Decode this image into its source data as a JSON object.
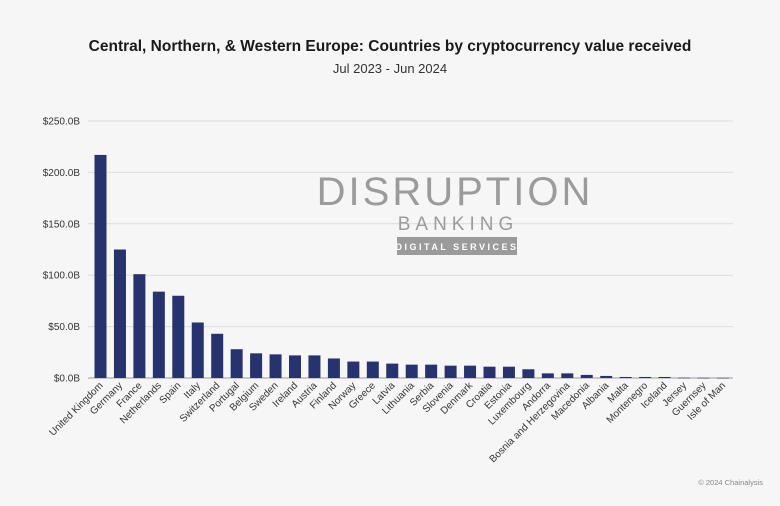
{
  "chart_data": {
    "type": "bar",
    "title": "Central, Northern, & Western Europe: Countries by cryptocurrency value received",
    "subtitle": "Jul 2023 - Jun 2024",
    "xlabel": "",
    "ylabel": "",
    "ylim": [
      0,
      250
    ],
    "yticks": [
      0,
      50,
      100,
      150,
      200,
      250
    ],
    "ytick_labels": [
      "$0.0B",
      "$50.0B",
      "$100.0B",
      "$150.0B",
      "$200.0B",
      "$250.0B"
    ],
    "grid": true,
    "categories": [
      "United Kingdom",
      "Germany",
      "France",
      "Netherlands",
      "Spain",
      "Italy",
      "Switzerland",
      "Portugal",
      "Belgium",
      "Sweden",
      "Ireland",
      "Austria",
      "Finland",
      "Norway",
      "Greece",
      "Latvia",
      "Lithuania",
      "Serbia",
      "Slovenia",
      "Denmark",
      "Croatia",
      "Estonia",
      "Luxembourg",
      "Andorra",
      "Bosnia and Herzegovina",
      "Macedonia",
      "Albania",
      "Malta",
      "Montenegro",
      "Iceland",
      "Jersey",
      "Guernsey",
      "Isle of Man"
    ],
    "values": [
      217,
      125,
      101,
      84,
      80,
      54,
      43,
      28,
      24,
      23,
      22,
      22,
      19,
      16,
      16,
      14,
      13,
      13,
      12,
      12,
      11,
      11,
      8.5,
      4.5,
      4.5,
      3,
      2,
      1,
      1,
      1,
      0.3,
      0.2,
      0.2
    ],
    "bar_color": "#26336e"
  },
  "watermark": {
    "brand_line1": "DISRUPTION",
    "brand_line2": "BANKING",
    "brand_tag": "DIGITAL SERVICES",
    "color": "#9b9b9b"
  },
  "credit": "© 2024 Chainalysis"
}
